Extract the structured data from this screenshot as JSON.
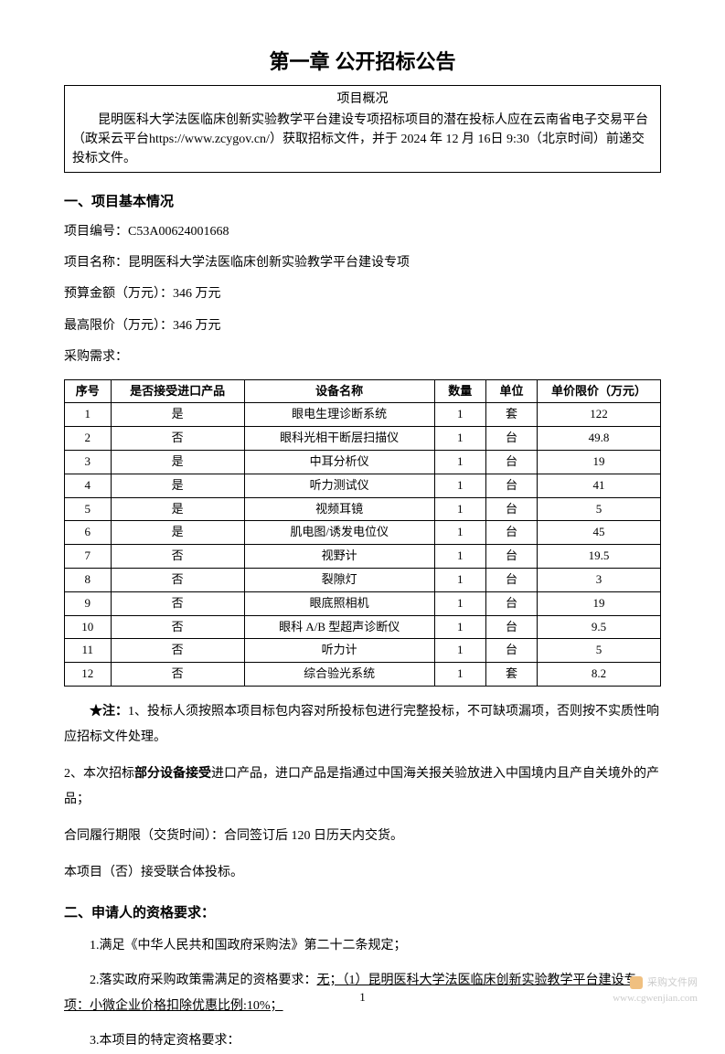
{
  "chapter_title": "第一章 公开招标公告",
  "overview": {
    "title": "项目概况",
    "text": "昆明医科大学法医临床创新实验教学平台建设专项招标项目的潜在投标人应在云南省电子交易平台（政采云平台https://www.zcygov.cn/）获取招标文件，并于 2024 年 12 月 16日 9:30（北京时间）前递交投标文件。"
  },
  "section1": {
    "heading": "一、项目基本情况",
    "project_number_label": "项目编号：",
    "project_number": "C53A00624001668",
    "project_name_label": "项目名称：",
    "project_name": "昆明医科大学法医临床创新实验教学平台建设专项",
    "budget_label": "预算金额（万元）：",
    "budget": "346 万元",
    "max_price_label": "最高限价（万元）：",
    "max_price": "346 万元",
    "purchase_req_label": "采购需求："
  },
  "table": {
    "headers": {
      "seq": "序号",
      "import": "是否接受进口产品",
      "name": "设备名称",
      "qty": "数量",
      "unit": "单位",
      "price": "单价限价（万元）"
    },
    "rows": [
      {
        "seq": "1",
        "import": "是",
        "name": "眼电生理诊断系统",
        "qty": "1",
        "unit": "套",
        "price": "122"
      },
      {
        "seq": "2",
        "import": "否",
        "name": "眼科光相干断层扫描仪",
        "qty": "1",
        "unit": "台",
        "price": "49.8"
      },
      {
        "seq": "3",
        "import": "是",
        "name": "中耳分析仪",
        "qty": "1",
        "unit": "台",
        "price": "19"
      },
      {
        "seq": "4",
        "import": "是",
        "name": "听力测试仪",
        "qty": "1",
        "unit": "台",
        "price": "41"
      },
      {
        "seq": "5",
        "import": "是",
        "name": "视频耳镜",
        "qty": "1",
        "unit": "台",
        "price": "5"
      },
      {
        "seq": "6",
        "import": "是",
        "name": "肌电图/诱发电位仪",
        "qty": "1",
        "unit": "台",
        "price": "45"
      },
      {
        "seq": "7",
        "import": "否",
        "name": "视野计",
        "qty": "1",
        "unit": "台",
        "price": "19.5"
      },
      {
        "seq": "8",
        "import": "否",
        "name": "裂隙灯",
        "qty": "1",
        "unit": "台",
        "price": "3"
      },
      {
        "seq": "9",
        "import": "否",
        "name": "眼底照相机",
        "qty": "1",
        "unit": "台",
        "price": "19"
      },
      {
        "seq": "10",
        "import": "否",
        "name": "眼科 A/B 型超声诊断仪",
        "qty": "1",
        "unit": "台",
        "price": "9.5"
      },
      {
        "seq": "11",
        "import": "否",
        "name": "听力计",
        "qty": "1",
        "unit": "台",
        "price": "5"
      },
      {
        "seq": "12",
        "import": "否",
        "name": "综合验光系统",
        "qty": "1",
        "unit": "套",
        "price": "8.2"
      }
    ]
  },
  "notes": {
    "note1_star": "★注：",
    "note1": "1、投标人须按照本项目标包内容对所投标包进行完整投标，不可缺项漏项，否则按不实质性响应招标文件处理。",
    "note2_prefix": "2、本次招标",
    "note2_bold": "部分设备接受",
    "note2_suffix": "进口产品，进口产品是指通过中国海关报关验放进入中国境内且产自关境外的产品；",
    "note3": "合同履行期限（交货时间）：合同签订后 120 日历天内交货。",
    "note4": "本项目（否）接受联合体投标。"
  },
  "section2": {
    "heading": "二、申请人的资格要求：",
    "req1": "1.满足《中华人民共和国政府采购法》第二十二条规定；",
    "req2_prefix": "2.落实政府采购政策需满足的资格要求：",
    "req2_underline": "无；（1）昆明医科大学法医临床创新实验教学平台建设专项：小微企业价格扣除优惠比例:10%；",
    "req3": "3.本项目的特定资格要求："
  },
  "page_number": "1",
  "watermark": {
    "text1": "采购文件网",
    "text2": "www.cgwenjian.com"
  }
}
